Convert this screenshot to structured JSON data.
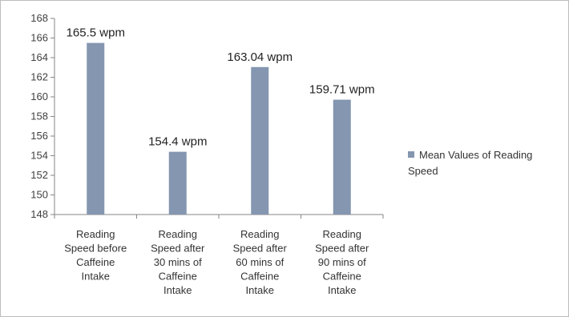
{
  "chart_data": {
    "type": "bar",
    "categories": [
      [
        "Reading",
        "Speed before",
        "Caffeine",
        "Intake"
      ],
      [
        "Reading",
        "Speed after",
        "30 mins of",
        "Caffeine",
        "Intake"
      ],
      [
        "Reading",
        "Speed after",
        "60 mins of",
        "Caffeine",
        "Intake"
      ],
      [
        "Reading",
        "Speed after",
        "90 mins of",
        "Caffeine",
        "Intake"
      ]
    ],
    "series": [
      {
        "name": "Mean Values of Reading Speed",
        "values": [
          165.5,
          154.4,
          163.04,
          159.71
        ],
        "data_labels": [
          "165.5 wpm",
          "154.4 wpm",
          "163.04 wpm",
          "159.71 wpm"
        ],
        "color": "#8496b0"
      }
    ],
    "ylim": [
      148,
      168
    ],
    "yticks": [
      148,
      150,
      152,
      154,
      156,
      158,
      160,
      162,
      164,
      166,
      168
    ],
    "grid": false,
    "legend_position": "right"
  }
}
